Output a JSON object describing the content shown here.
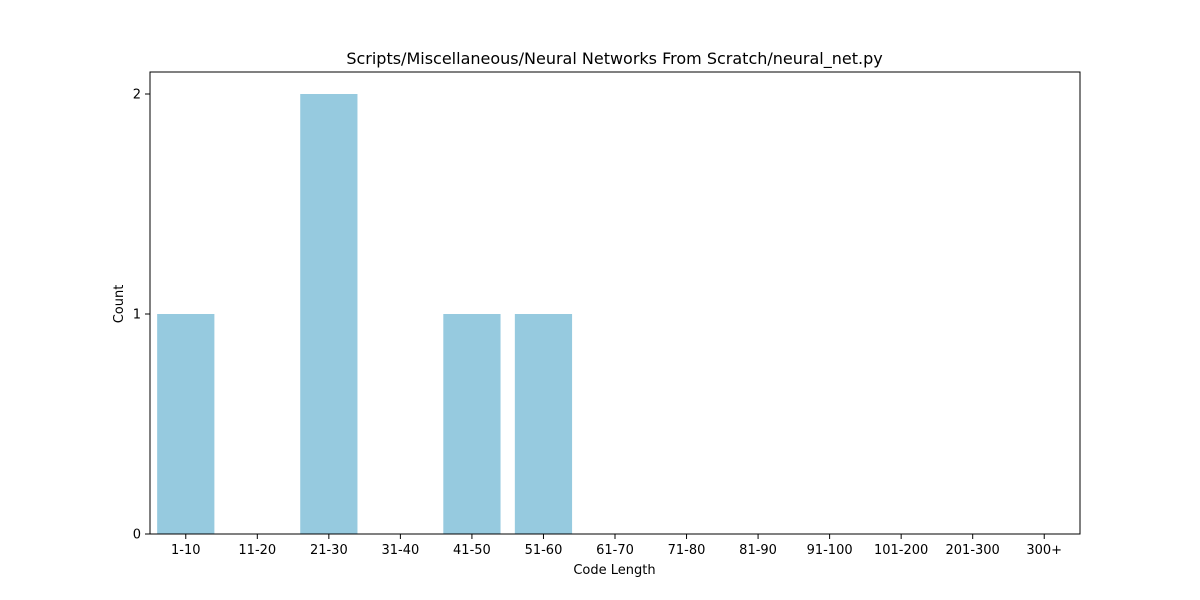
{
  "chart_data": {
    "type": "bar",
    "title": "Scripts/Miscellaneous/Neural Networks From Scratch/neural_net.py",
    "xlabel": "Code Length",
    "ylabel": "Count",
    "categories": [
      "1-10",
      "11-20",
      "21-30",
      "31-40",
      "41-50",
      "51-60",
      "61-70",
      "71-80",
      "81-90",
      "91-100",
      "101-200",
      "201-300",
      "300+"
    ],
    "values": [
      1,
      0,
      2,
      0,
      1,
      1,
      0,
      0,
      0,
      0,
      0,
      0,
      0
    ],
    "ylim": [
      0,
      2.1
    ],
    "yticks": [
      "0",
      "1",
      "2"
    ],
    "bar_color": "#96cadf",
    "grid": false,
    "legend": "none"
  }
}
